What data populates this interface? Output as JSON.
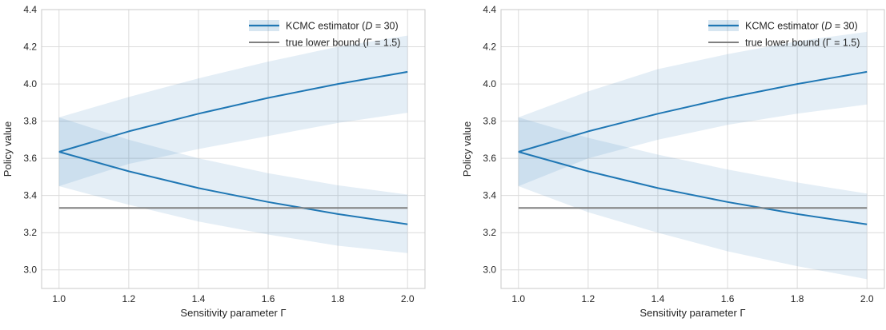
{
  "chart_data": [
    {
      "type": "line",
      "xlabel": "Sensitivity parameter Γ",
      "ylabel": "Policy value",
      "xlim": [
        0.95,
        2.05
      ],
      "ylim": [
        2.9,
        4.4
      ],
      "xticks": [
        1.0,
        1.2,
        1.4,
        1.6,
        1.8,
        2.0
      ],
      "xtick_labels": [
        "1.0",
        "1.2",
        "1.4",
        "1.6",
        "1.8",
        "2.0"
      ],
      "yticks": [
        3.0,
        3.2,
        3.4,
        3.6,
        3.8,
        4.0,
        4.2,
        4.4
      ],
      "ytick_labels": [
        "3.0",
        "3.2",
        "3.4",
        "3.6",
        "3.8",
        "4.0",
        "4.2",
        "4.4"
      ],
      "grid": true,
      "legend_position": "top-right",
      "legend": [
        {
          "label": "KCMC estimator (D = 30)",
          "kind": "line-band",
          "color": "#1f77b4"
        },
        {
          "label": "true lower bound (Γ = 1.5)",
          "kind": "line",
          "color": "#808080"
        }
      ],
      "x": [
        1.0,
        1.2,
        1.4,
        1.6,
        1.8,
        2.0
      ],
      "series": [
        {
          "role": "upper-estimate",
          "values": [
            3.635,
            3.745,
            3.84,
            3.925,
            4.0,
            4.065
          ],
          "band_low": [
            3.45,
            3.57,
            3.65,
            3.72,
            3.79,
            3.845
          ],
          "band_high": [
            3.82,
            3.93,
            4.03,
            4.12,
            4.2,
            4.26
          ],
          "color": "#1f77b4"
        },
        {
          "role": "lower-estimate",
          "values": [
            3.635,
            3.53,
            3.44,
            3.365,
            3.3,
            3.245
          ],
          "band_low": [
            3.45,
            3.35,
            3.26,
            3.19,
            3.13,
            3.09
          ],
          "band_high": [
            3.82,
            3.7,
            3.6,
            3.52,
            3.455,
            3.405
          ],
          "color": "#1f77b4"
        },
        {
          "role": "true-lower-bound",
          "values": [
            3.333,
            3.333,
            3.333,
            3.333,
            3.333,
            3.333
          ],
          "color": "#808080"
        }
      ]
    },
    {
      "type": "line",
      "xlabel": "Sensitivity parameter Γ",
      "ylabel": "Policy value",
      "xlim": [
        0.95,
        2.05
      ],
      "ylim": [
        2.9,
        4.4
      ],
      "xticks": [
        1.0,
        1.2,
        1.4,
        1.6,
        1.8,
        2.0
      ],
      "xtick_labels": [
        "1.0",
        "1.2",
        "1.4",
        "1.6",
        "1.8",
        "2.0"
      ],
      "yticks": [
        3.0,
        3.2,
        3.4,
        3.6,
        3.8,
        4.0,
        4.2,
        4.4
      ],
      "ytick_labels": [
        "3.0",
        "3.2",
        "3.4",
        "3.6",
        "3.8",
        "4.0",
        "4.2",
        "4.4"
      ],
      "grid": true,
      "legend_position": "top-right",
      "legend": [
        {
          "label": "KCMC estimator (D = 30)",
          "kind": "line-band",
          "color": "#1f77b4"
        },
        {
          "label": "true lower bound (Γ = 1.5)",
          "kind": "line",
          "color": "#808080"
        }
      ],
      "x": [
        1.0,
        1.2,
        1.4,
        1.6,
        1.8,
        2.0
      ],
      "series": [
        {
          "role": "upper-estimate",
          "values": [
            3.635,
            3.745,
            3.84,
            3.925,
            4.0,
            4.065
          ],
          "band_low": [
            3.45,
            3.6,
            3.7,
            3.78,
            3.84,
            3.89
          ],
          "band_high": [
            3.82,
            3.96,
            4.08,
            4.16,
            4.23,
            4.28
          ],
          "color": "#1f77b4"
        },
        {
          "role": "lower-estimate",
          "values": [
            3.635,
            3.53,
            3.44,
            3.365,
            3.3,
            3.245
          ],
          "band_low": [
            3.45,
            3.31,
            3.2,
            3.1,
            3.02,
            2.95
          ],
          "band_high": [
            3.82,
            3.71,
            3.62,
            3.54,
            3.47,
            3.41
          ],
          "color": "#1f77b4"
        },
        {
          "role": "true-lower-bound",
          "values": [
            3.333,
            3.333,
            3.333,
            3.333,
            3.333,
            3.333
          ],
          "color": "#808080"
        }
      ]
    }
  ]
}
